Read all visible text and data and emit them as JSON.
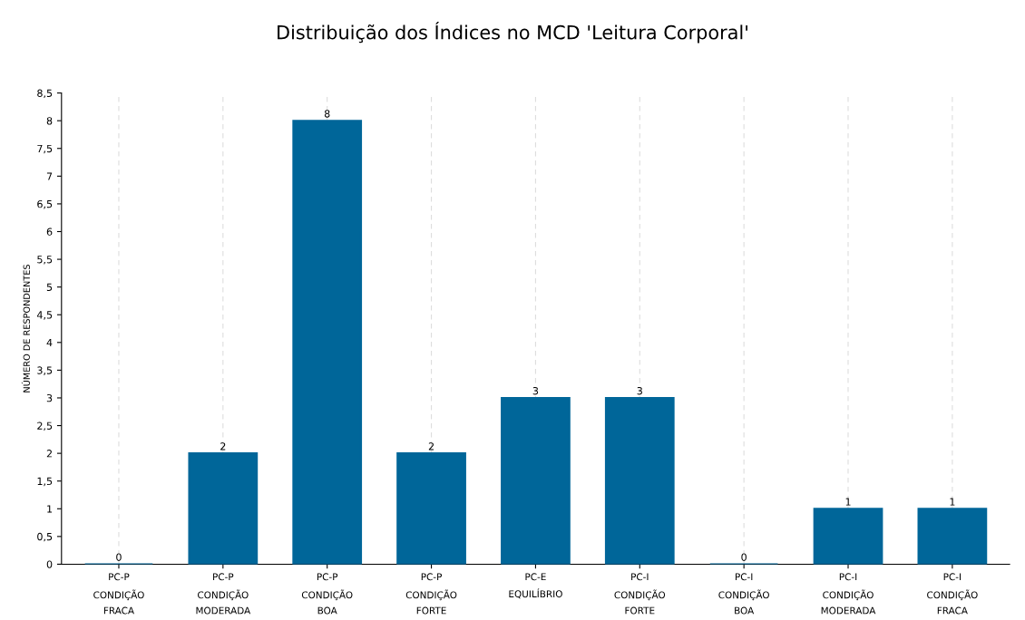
{
  "chart_data": {
    "type": "bar",
    "title": "Distribuição dos Índices no MCD 'Leitura Corporal'",
    "ylabel": "NÚMERO DE RESPONDENTES",
    "categories": [
      "PC-P\nCONDIÇÃO\nFRACA",
      "PC-P\nCONDIÇÃO\nMODERADA",
      "PC-P\nCONDIÇÃO\nBOA",
      "PC-P\nCONDIÇÃO\nFORTE",
      "PC-E\nEQUILÍBRIO",
      "PC-I\nCONDIÇÃO\nFORTE",
      "PC-I\nCONDIÇÃO\nBOA",
      "PC-I\nCONDIÇÃO\nMODERADA",
      "PC-I\nCONDIÇÃO\nFRACA"
    ],
    "values": [
      0,
      2,
      8,
      2,
      3,
      3,
      0,
      1,
      1
    ],
    "color": "#006699",
    "ylim": [
      0,
      8.5
    ],
    "yticks": [
      0,
      {
        "value": 0.5,
        "label": "0,5"
      },
      1,
      {
        "value": 1.5,
        "label": "1,5"
      },
      2,
      {
        "value": 2.5,
        "label": "2,5"
      },
      3,
      {
        "value": 3.5,
        "label": "3,5"
      },
      4,
      {
        "value": 4.5,
        "label": "4,5"
      },
      5,
      {
        "value": 5.5,
        "label": "5,5"
      },
      6,
      {
        "value": 6.5,
        "label": "6,5"
      },
      7,
      {
        "value": 7.5,
        "label": "7,5"
      },
      8,
      {
        "value": 8.5,
        "label": "8,5"
      }
    ],
    "grid": "x",
    "data_labels": true
  }
}
